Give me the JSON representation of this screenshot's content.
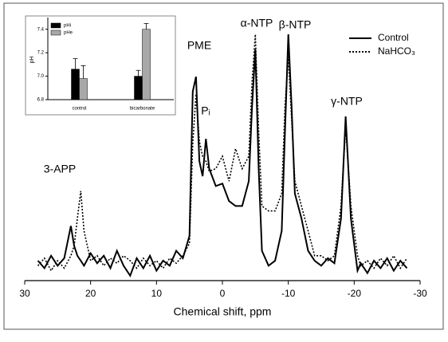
{
  "chart_data": [
    {
      "type": "line",
      "xlabel": "Chemical shift, ppm",
      "xlim": [
        30,
        -30
      ],
      "xticks": [
        30,
        20,
        10,
        0,
        -10,
        -20,
        -30
      ],
      "ylim": [
        0,
        100
      ],
      "annotations": [
        "3-APP",
        "PME",
        "Pᵢ",
        "α-NTP",
        "β-NTP",
        "γ-NTP"
      ],
      "legend": "upper right",
      "x": [
        28,
        27,
        26,
        25,
        24,
        23,
        22.5,
        22,
        21.5,
        21,
        20,
        19,
        18,
        17,
        16,
        15,
        14,
        13,
        12,
        11,
        10,
        9,
        8,
        7,
        6,
        5,
        4.5,
        4,
        3.5,
        3,
        2.5,
        2,
        1,
        0,
        -1,
        -2,
        -3,
        -4,
        -4.5,
        -5,
        -5.5,
        -6,
        -7,
        -8,
        -9,
        -9.5,
        -10,
        -10.5,
        -11,
        -12,
        -13,
        -14,
        -15,
        -16,
        -17,
        -18,
        -18.7,
        -19.5,
        -20.5,
        -21,
        -22,
        -23,
        -24,
        -25,
        -26,
        -27,
        -28
      ],
      "series": [
        {
          "name": "Control",
          "color": "#000000",
          "dash": "solid",
          "values": [
            8,
            5,
            10,
            6,
            9,
            22,
            14,
            10,
            8,
            6,
            11,
            7,
            10,
            5,
            12,
            6,
            2,
            9,
            5,
            10,
            4,
            8,
            6,
            12,
            9,
            18,
            76,
            82,
            48,
            42,
            57,
            45,
            38,
            39,
            32,
            30,
            30,
            40,
            70,
            93,
            45,
            12,
            6,
            8,
            20,
            60,
            99,
            70,
            35,
            25,
            12,
            8,
            6,
            9,
            7,
            25,
            66,
            25,
            4,
            7,
            3,
            8,
            5,
            9,
            4,
            8,
            5
          ]
        },
        {
          "name": "NaHCO₃",
          "color": "#000000",
          "dash": "dotted",
          "values": [
            6,
            9,
            4,
            8,
            5,
            10,
            14,
            25,
            36,
            20,
            8,
            10,
            6,
            9,
            7,
            10,
            8,
            5,
            9,
            6,
            8,
            5,
            9,
            7,
            10,
            15,
            55,
            75,
            56,
            50,
            48,
            44,
            45,
            50,
            40,
            53,
            45,
            50,
            80,
            99,
            60,
            30,
            28,
            28,
            35,
            70,
            90,
            65,
            40,
            30,
            20,
            10,
            10,
            8,
            10,
            30,
            62,
            30,
            10,
            6,
            8,
            5,
            9,
            6,
            10,
            5,
            9
          ]
        }
      ]
    },
    {
      "type": "bar",
      "ylabel": "pH",
      "categories": [
        "control",
        "bicarbonate"
      ],
      "ylim": [
        6.8,
        7.5
      ],
      "yticks": [
        6.8,
        {
          "value": 7,
          "label": "7.0"
        },
        7.2,
        7.4
      ],
      "legend": "upper left",
      "series": [
        {
          "name": "pHi",
          "color": "#000000",
          "values": [
            7.06,
            7.0
          ],
          "errors": [
            0.09,
            0.05
          ]
        },
        {
          "name": "pHe",
          "color": "#a8a8a8",
          "values": [
            6.98,
            7.4
          ],
          "errors": [
            0.11,
            0.05
          ]
        }
      ]
    }
  ]
}
